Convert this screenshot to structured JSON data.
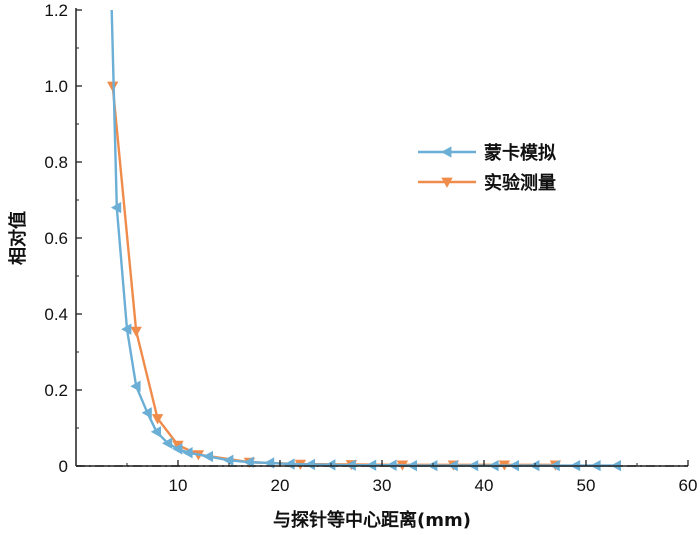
{
  "chart_data": {
    "type": "line",
    "xlabel": "与探针等中心距离(mm)",
    "ylabel": "相对值",
    "xlim": [
      0,
      60
    ],
    "ylim": [
      0,
      1.2
    ],
    "x_ticks": [
      10,
      20,
      30,
      40,
      50,
      60
    ],
    "x_tick_labels": [
      "10",
      "20",
      "30",
      "40",
      "50",
      "60"
    ],
    "y_ticks": [
      0,
      0.2,
      0.4,
      0.6,
      0.8,
      1.0,
      1.2
    ],
    "y_tick_labels": [
      "0",
      "0.2",
      "0.4",
      "0.6",
      "0.8",
      "1.0",
      "1.2"
    ],
    "reference_line": {
      "y": 0,
      "style": "dash-dot"
    },
    "legend_position": "right-middle",
    "series": [
      {
        "name": "蒙卡模拟",
        "color": "#6BAED6",
        "marker": "triangle-left",
        "x": [
          3.5,
          4.0,
          5.0,
          5.9,
          7.0,
          7.9,
          9.0,
          10.0,
          11.0,
          13.0,
          15.0,
          17.0,
          19.0,
          21.0,
          23.0,
          25.0,
          27.0,
          29.0,
          31.0,
          33.0,
          35.0,
          37.0,
          39.0,
          41.0,
          43.0,
          45.0,
          47.0,
          49.0,
          51.0,
          53.0
        ],
        "y": [
          1.2,
          0.68,
          0.36,
          0.21,
          0.14,
          0.09,
          0.06,
          0.045,
          0.035,
          0.025,
          0.015,
          0.01,
          0.008,
          0.005,
          0.004,
          0.003,
          0.002,
          0.002,
          0.002,
          0.001,
          0.001,
          0.001,
          0.001,
          0.001,
          0.001,
          0.001,
          0.001,
          0.001,
          0.001,
          0.001
        ]
      },
      {
        "name": "实验测量",
        "color": "#F08C4B",
        "marker": "triangle-down",
        "x": [
          3.6,
          5.9,
          8.0,
          10.0,
          12.0,
          17.0,
          22.0,
          27.0,
          32.0,
          37.0,
          42.0,
          47.0
        ],
        "y": [
          1.0,
          0.355,
          0.125,
          0.055,
          0.03,
          0.01,
          0.005,
          0.004,
          0.003,
          0.003,
          0.003,
          0.003
        ]
      }
    ]
  }
}
